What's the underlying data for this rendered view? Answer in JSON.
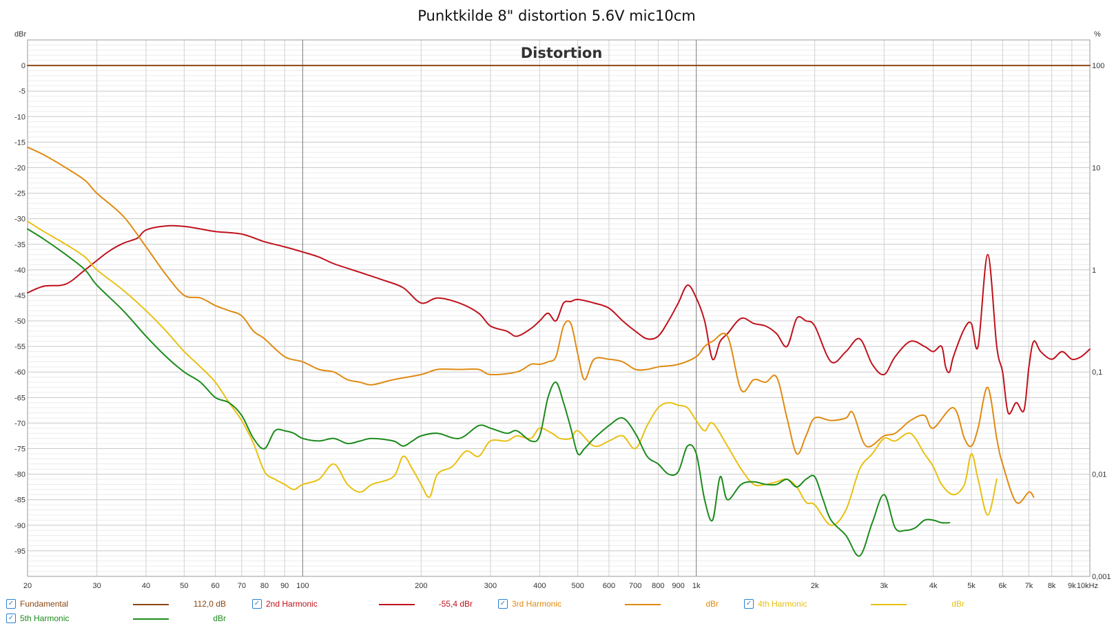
{
  "chart_data": {
    "type": "line",
    "title": "Punktkilde 8\" distortion 5.6V mic10cm",
    "subtitle": "Distortion",
    "left_axis_unit": "dBr",
    "right_axis_unit": "%",
    "x_scale": "log",
    "xlim": [
      20,
      10000
    ],
    "ylim": [
      -100,
      5
    ],
    "y_ticks": [
      0,
      -5,
      -10,
      -15,
      -20,
      -25,
      -30,
      -35,
      -40,
      -45,
      -50,
      -55,
      -60,
      -65,
      -70,
      -75,
      -80,
      -85,
      -90,
      -95
    ],
    "y_tick_labels": [
      "0",
      "-5",
      "-10",
      "-15",
      "-20",
      "-25",
      "-30",
      "-35",
      "-40",
      "-45",
      "-50",
      "-55",
      "-60",
      "-65",
      "-70",
      "-75",
      "-80",
      "-85",
      "-90",
      "-95"
    ],
    "right_ticks": [
      {
        "label": "100",
        "dbr": 0
      },
      {
        "label": "10",
        "dbr": -20
      },
      {
        "label": "1",
        "dbr": -40
      },
      {
        "label": "0,1",
        "dbr": -60
      },
      {
        "label": "0,01",
        "dbr": -80
      },
      {
        "label": "0,001",
        "dbr": -100
      }
    ],
    "x_ticks": [
      {
        "label": "20",
        "value": 20
      },
      {
        "label": "30",
        "value": 30
      },
      {
        "label": "40",
        "value": 40
      },
      {
        "label": "50",
        "value": 50
      },
      {
        "label": "60",
        "value": 60
      },
      {
        "label": "70",
        "value": 70
      },
      {
        "label": "80",
        "value": 80
      },
      {
        "label": "90",
        "value": 90
      },
      {
        "label": "100",
        "value": 100
      },
      {
        "label": "200",
        "value": 200
      },
      {
        "label": "300",
        "value": 300
      },
      {
        "label": "400",
        "value": 400
      },
      {
        "label": "500",
        "value": 500
      },
      {
        "label": "600",
        "value": 600
      },
      {
        "label": "700",
        "value": 700
      },
      {
        "label": "800",
        "value": 800
      },
      {
        "label": "900",
        "value": 900
      },
      {
        "label": "1k",
        "value": 1000
      },
      {
        "label": "2k",
        "value": 2000
      },
      {
        "label": "3k",
        "value": 3000
      },
      {
        "label": "4k",
        "value": 4000
      },
      {
        "label": "5k",
        "value": 5000
      },
      {
        "label": "6k",
        "value": 6000
      },
      {
        "label": "7k",
        "value": 7000
      },
      {
        "label": "8k",
        "value": 8000
      },
      {
        "label": "9k",
        "value": 9000
      },
      {
        "label": "10kHz",
        "value": 10000
      }
    ],
    "grid": true,
    "legend_position": "bottom",
    "series": [
      {
        "name": "Fundamental",
        "color": "#8b4513",
        "value_label": "112,0 dB",
        "x": [
          20,
          10000
        ],
        "y": [
          0,
          0
        ]
      },
      {
        "name": "2nd Harmonic",
        "color": "#c0101a",
        "value_label": "-55,4 dBr",
        "x": [
          20,
          22,
          25,
          28,
          32,
          35,
          38,
          40,
          45,
          50,
          55,
          60,
          70,
          80,
          90,
          100,
          110,
          120,
          140,
          160,
          180,
          200,
          220,
          250,
          280,
          300,
          330,
          350,
          380,
          400,
          420,
          440,
          460,
          480,
          500,
          550,
          600,
          650,
          700,
          750,
          800,
          850,
          900,
          950,
          1000,
          1050,
          1100,
          1150,
          1200,
          1300,
          1400,
          1500,
          1600,
          1700,
          1800,
          1900,
          2000,
          2200,
          2400,
          2600,
          2800,
          3000,
          3200,
          3500,
          3800,
          4000,
          4200,
          4300,
          4400,
          4500,
          4800,
          5000,
          5200,
          5500,
          5800,
          6000,
          6200,
          6500,
          6800,
          7000,
          7200,
          7500,
          8000,
          8500,
          9000,
          9500,
          10000
        ],
        "y": [
          -44.5,
          -43.2,
          -42.8,
          -40,
          -36.5,
          -34.8,
          -33.8,
          -32.2,
          -31.4,
          -31.5,
          -32,
          -32.5,
          -33,
          -34.5,
          -35.5,
          -36.5,
          -37.5,
          -38.8,
          -40.5,
          -42,
          -43.5,
          -46.5,
          -45.5,
          -46.5,
          -48.5,
          -51,
          -52,
          -53,
          -51.5,
          -50,
          -48.5,
          -50,
          -46.5,
          -46.2,
          -45.8,
          -46.5,
          -47.5,
          -50,
          -52,
          -53.5,
          -53,
          -50,
          -46.5,
          -43,
          -45.5,
          -50,
          -57.5,
          -54,
          -52.5,
          -49.5,
          -50.5,
          -51,
          -52.5,
          -55,
          -49.5,
          -50,
          -51,
          -58,
          -56,
          -53.5,
          -58.5,
          -60.5,
          -57,
          -54,
          -55,
          -56,
          -55,
          -59,
          -60,
          -57,
          -51.5,
          -50.5,
          -55,
          -37,
          -55,
          -60,
          -68,
          -66,
          -67.5,
          -59,
          -54,
          -56,
          -57.5,
          -56,
          -57.5,
          -57,
          -55.5
        ]
      },
      {
        "name": "3rd Harmonic",
        "color": "#e08a10",
        "value_label": "dBr",
        "x": [
          20,
          22,
          25,
          28,
          30,
          35,
          40,
          45,
          50,
          55,
          60,
          65,
          70,
          75,
          80,
          90,
          100,
          110,
          120,
          130,
          140,
          150,
          170,
          200,
          220,
          250,
          280,
          300,
          350,
          380,
          400,
          420,
          440,
          460,
          480,
          500,
          520,
          550,
          600,
          650,
          700,
          750,
          800,
          900,
          1000,
          1050,
          1100,
          1200,
          1300,
          1400,
          1500,
          1600,
          1700,
          1800,
          1900,
          2000,
          2200,
          2400,
          2500,
          2700,
          3000,
          3200,
          3500,
          3800,
          4000,
          4500,
          4800,
          5000,
          5200,
          5500,
          5800,
          6000,
          6500,
          7000,
          7200
        ],
        "y": [
          -16,
          -17.5,
          -20,
          -22.5,
          -25,
          -29.5,
          -35.5,
          -41,
          -45,
          -45.5,
          -47,
          -48,
          -49,
          -52,
          -53.5,
          -57,
          -58,
          -59.5,
          -60,
          -61.5,
          -62,
          -62.5,
          -61.5,
          -60.5,
          -59.5,
          -59.5,
          -59.5,
          -60.5,
          -60,
          -58.5,
          -58.5,
          -58,
          -57,
          -51,
          -50.5,
          -56.5,
          -61.5,
          -57.5,
          -57.5,
          -58,
          -59.5,
          -59.5,
          -59,
          -58.5,
          -57,
          -55,
          -54,
          -53,
          -63.5,
          -61.5,
          -62,
          -61,
          -69,
          -76,
          -72.5,
          -69,
          -69.5,
          -69,
          -68,
          -74.5,
          -72.5,
          -72,
          -69.5,
          -68.5,
          -71,
          -67,
          -73,
          -74.5,
          -71,
          -63,
          -73,
          -78,
          -85.5,
          -83.5,
          -84.5
        ]
      },
      {
        "name": "4th Harmonic",
        "color": "#e8c010",
        "value_label": "dBr",
        "x": [
          20,
          22,
          25,
          28,
          30,
          35,
          40,
          45,
          50,
          55,
          60,
          65,
          70,
          75,
          80,
          85,
          90,
          95,
          100,
          110,
          120,
          130,
          140,
          150,
          170,
          180,
          190,
          200,
          210,
          220,
          240,
          260,
          280,
          300,
          330,
          350,
          380,
          400,
          430,
          450,
          480,
          500,
          550,
          600,
          650,
          700,
          750,
          800,
          850,
          900,
          950,
          1000,
          1050,
          1100,
          1200,
          1300,
          1400,
          1500,
          1600,
          1700,
          1800,
          1900,
          2000,
          2200,
          2400,
          2600,
          2800,
          3000,
          3200,
          3500,
          3800,
          4000,
          4200,
          4500,
          4800,
          5000,
          5200,
          5500,
          5800
        ],
        "y": [
          -30.5,
          -32.5,
          -35,
          -37.5,
          -40,
          -44,
          -48,
          -52,
          -56,
          -59,
          -62,
          -66,
          -69.5,
          -74,
          -79.5,
          -81,
          -82,
          -83,
          -82,
          -81,
          -78,
          -82,
          -83.5,
          -82,
          -80.5,
          -76.5,
          -79,
          -82,
          -84.5,
          -80,
          -78.5,
          -75.5,
          -76.5,
          -73.5,
          -73.5,
          -72.5,
          -73,
          -71,
          -72,
          -73,
          -73,
          -71.5,
          -74.5,
          -73.5,
          -72.5,
          -75,
          -70.5,
          -67,
          -66,
          -66.5,
          -67,
          -69.5,
          -71.5,
          -70,
          -74.5,
          -79,
          -82,
          -82,
          -81.5,
          -81,
          -82.5,
          -85.5,
          -86,
          -90,
          -87,
          -79,
          -76,
          -73,
          -73.5,
          -72,
          -76,
          -78.5,
          -82,
          -84,
          -82,
          -76,
          -81,
          -88,
          -81
        ]
      },
      {
        "name": "5th Harmonic",
        "color": "#1a8a1a",
        "value_label": "dBr",
        "x": [
          20,
          22,
          25,
          28,
          30,
          35,
          40,
          45,
          50,
          55,
          60,
          65,
          70,
          75,
          80,
          85,
          90,
          95,
          100,
          110,
          120,
          130,
          140,
          150,
          170,
          180,
          190,
          200,
          220,
          250,
          280,
          300,
          330,
          350,
          380,
          400,
          420,
          440,
          460,
          480,
          500,
          520,
          550,
          600,
          650,
          700,
          750,
          800,
          850,
          900,
          950,
          1000,
          1050,
          1100,
          1150,
          1200,
          1300,
          1400,
          1500,
          1600,
          1700,
          1800,
          1900,
          2000,
          2100,
          2200,
          2400,
          2600,
          2800,
          3000,
          3200,
          3400,
          3600,
          3800,
          4000,
          4200,
          4400
        ],
        "y": [
          -32,
          -34,
          -37,
          -40,
          -43,
          -48,
          -53,
          -57,
          -60,
          -62,
          -65,
          -66,
          -68.5,
          -73,
          -75,
          -71.5,
          -71.5,
          -72,
          -73,
          -73.5,
          -73,
          -74,
          -73.5,
          -73,
          -73.5,
          -74.5,
          -73.5,
          -72.5,
          -72,
          -73,
          -70.5,
          -71,
          -72,
          -71.5,
          -73.5,
          -72.5,
          -65,
          -62,
          -66,
          -71,
          -76,
          -75,
          -73,
          -70.5,
          -69,
          -72,
          -76.5,
          -78,
          -80,
          -79.5,
          -74.5,
          -76,
          -85,
          -89,
          -80.5,
          -85,
          -82,
          -81.5,
          -82,
          -82,
          -81,
          -82.5,
          -81,
          -80.5,
          -85,
          -89,
          -92,
          -96,
          -89.5,
          -84,
          -90.5,
          -91,
          -90.5,
          -89,
          -89,
          -89.5,
          -89.5
        ]
      }
    ]
  },
  "legend": [
    {
      "label": "Fundamental",
      "value": "112,0 dB"
    },
    {
      "label": "2nd Harmonic",
      "value": "-55,4 dBr"
    },
    {
      "label": "3rd Harmonic",
      "value": "dBr"
    },
    {
      "label": "4th Harmonic",
      "value": "dBr"
    },
    {
      "label": "5th Harmonic",
      "value": "dBr"
    }
  ]
}
